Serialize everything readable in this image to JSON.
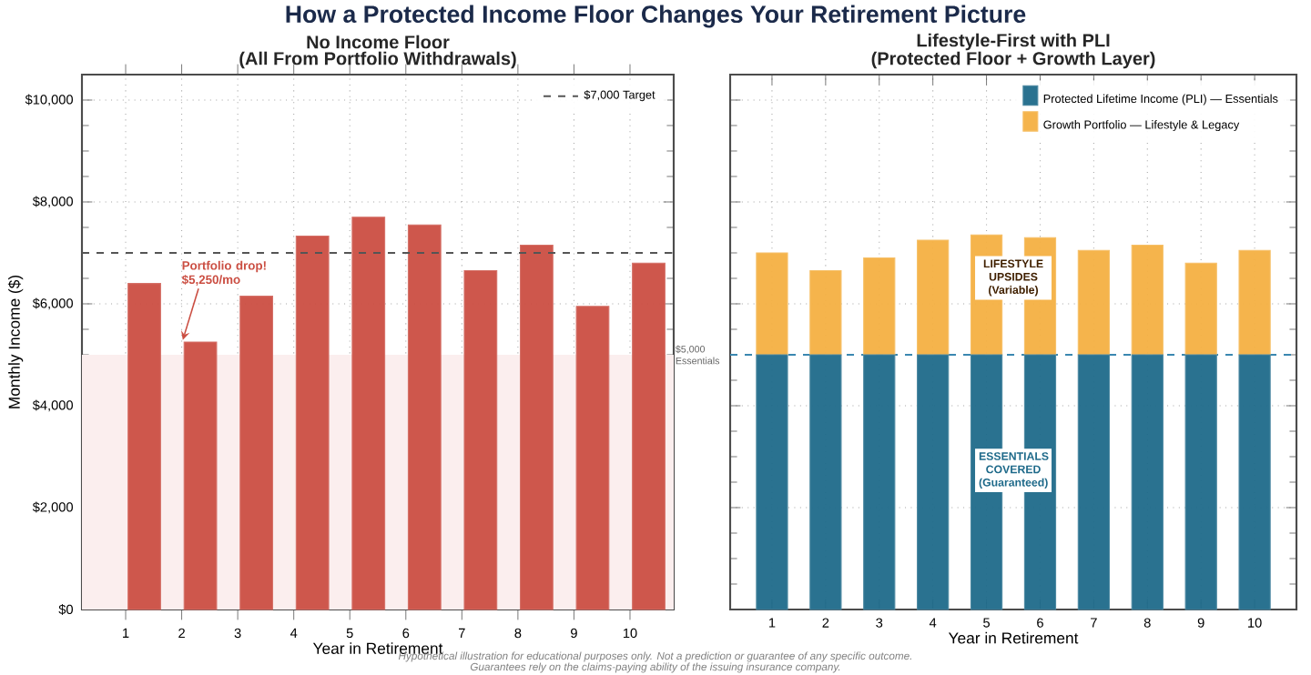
{
  "chart_data": [
    {
      "type": "bar",
      "title": "No Income Floor",
      "subtitle": "(All From Portfolio Withdrawals)",
      "xlabel": "Year in Retirement",
      "ylabel": "Monthly Income ($)",
      "categories": [
        "1",
        "2",
        "3",
        "4",
        "5",
        "6",
        "7",
        "8",
        "9",
        "10"
      ],
      "values": [
        6400,
        5250,
        6150,
        7330,
        7700,
        7550,
        6650,
        7150,
        5950,
        6800
      ],
      "color": "#cb4e42",
      "ylim": [
        0,
        10500
      ],
      "yticks": [
        {
          "value": 0,
          "label": "$0"
        },
        {
          "value": 2000,
          "label": "$2,000"
        },
        {
          "value": 4000,
          "label": "$4,000"
        },
        {
          "value": 6000,
          "label": "$6,000"
        },
        {
          "value": 8000,
          "label": "$8,000"
        },
        {
          "value": 10000,
          "label": "$10,000"
        }
      ],
      "grid": true,
      "legend": "top right",
      "ref_lines": [
        {
          "axis": "y",
          "value": 7000,
          "label": "$7,000 Target",
          "color": "#555555",
          "line_style": "dashed"
        }
      ],
      "bands": [
        {
          "axis": "y",
          "from": 0,
          "to": 5000,
          "label": "$5,000 Essentials",
          "color": "#fbeeee"
        }
      ],
      "annotations": [
        "How a Protected Income Floor Changes Your Retirement Picture",
        {
          "text": "Portfolio drop! $5,250/mo",
          "x": "2",
          "y": 5250
        },
        "Hypothetical illustration for educational purposes only. Not a prediction or guarantee of any specific outcome.",
        "Guarantees rely on the claims-paying ability of the issuing insurance company."
      ]
    },
    {
      "type": "bar",
      "title": "Lifestyle-First with PLI",
      "subtitle": "(Protected Floor + Growth Layer)",
      "xlabel": "Year in Retirement",
      "categories": [
        "1",
        "2",
        "3",
        "4",
        "5",
        "6",
        "7",
        "8",
        "9",
        "10"
      ],
      "stacked": true,
      "series": [
        {
          "name": "Protected Lifetime Income (PLI) — Essentials",
          "color": "#1f6a8a",
          "values": [
            5000,
            5000,
            5000,
            5000,
            5000,
            5000,
            5000,
            5000,
            5000,
            5000
          ]
        },
        {
          "name": "Growth Portfolio — Lifestyle & Legacy",
          "color": "#f4b042",
          "values": [
            2000,
            1650,
            1900,
            2250,
            2350,
            2300,
            2050,
            2150,
            1800,
            2050
          ]
        }
      ],
      "ylim": [
        0,
        10500
      ],
      "yticks": [
        0,
        2000,
        4000,
        6000,
        8000,
        10000
      ],
      "tick_labels": "x",
      "grid": true,
      "legend": "top right",
      "ref_lines": [
        {
          "axis": "y",
          "value": 5000,
          "color": "#3a87b0",
          "line_style": "dashed"
        }
      ],
      "annotations": [
        "LIFESTYLE UPSIDES (Variable)",
        "ESSENTIALS COVERED (Guaranteed)"
      ]
    }
  ]
}
